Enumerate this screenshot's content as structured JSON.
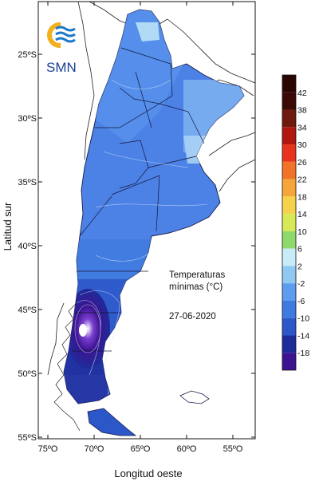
{
  "logo": {
    "text": "SMN"
  },
  "axes": {
    "ylabel": "Latitud sur",
    "xlabel": "Longitud oeste",
    "lat_ticks": [
      {
        "label": "25ºS",
        "value": 25
      },
      {
        "label": "30ºS",
        "value": 30
      },
      {
        "label": "35ºS",
        "value": 35
      },
      {
        "label": "40ºS",
        "value": 40
      },
      {
        "label": "45ºS",
        "value": 45
      },
      {
        "label": "50ºS",
        "value": 50
      },
      {
        "label": "55ºS",
        "value": 55
      }
    ],
    "lon_ticks": [
      {
        "label": "75ºO",
        "value": 75
      },
      {
        "label": "70ºO",
        "value": 70
      },
      {
        "label": "65ºO",
        "value": 65
      },
      {
        "label": "60ºO",
        "value": 60
      },
      {
        "label": "55ºO",
        "value": 55
      }
    ]
  },
  "annotation": {
    "line1": "Temperaturas",
    "line2": "mínimas (°C)",
    "date": "27-06-2020"
  },
  "legend": {
    "bins": [
      {
        "label": "42",
        "color": "#3b0a05"
      },
      {
        "label": "38",
        "color": "#6e1a0e"
      },
      {
        "label": "34",
        "color": "#b0170e"
      },
      {
        "label": "30",
        "color": "#e8341c"
      },
      {
        "label": "26",
        "color": "#f1732a"
      },
      {
        "label": "22",
        "color": "#f5a53a"
      },
      {
        "label": "18",
        "color": "#f6d24c"
      },
      {
        "label": "14",
        "color": "#d6ea58"
      },
      {
        "label": "10",
        "color": "#8fd86a"
      },
      {
        "label": "6",
        "color": "#c7ecf7"
      },
      {
        "label": "2",
        "color": "#8fc9f2"
      },
      {
        "label": "-2",
        "color": "#5d9cee"
      },
      {
        "label": "-6",
        "color": "#3f7ae0"
      },
      {
        "label": "-10",
        "color": "#2c57c9"
      },
      {
        "label": "-14",
        "color": "#1e2c9a"
      },
      {
        "label": "-18",
        "color": "#3c1490"
      }
    ],
    "top_color": "#2a0603"
  }
}
